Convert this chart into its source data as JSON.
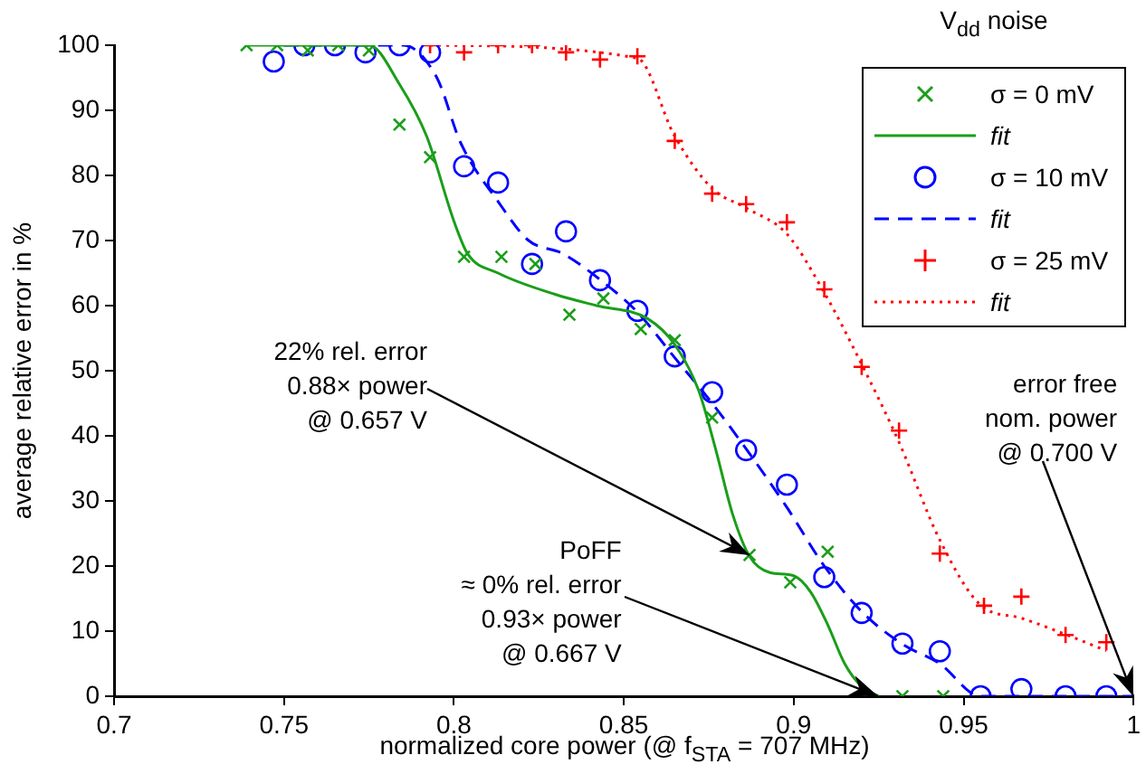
{
  "chart_data": {
    "type": "scatter",
    "xlabel": "normalized core power (@ f$_{STA}$ = 707 MHz)",
    "ylabel": "average relative error in %",
    "legend_title": "V$_{dd}$ noise",
    "legend": "top right",
    "grid": false,
    "xlim": [
      0.7,
      1
    ],
    "xticks": [
      0.7,
      0.75,
      0.8,
      0.85,
      0.9,
      0.95,
      1
    ],
    "ylim": [
      0,
      100
    ],
    "yticks": [
      0,
      10,
      20,
      30,
      40,
      50,
      60,
      70,
      80,
      90,
      100
    ],
    "series": [
      {
        "name": "σ = 0 mV",
        "type": "scatter",
        "marker": "cross",
        "color": "#1a9e1a",
        "x": [
          0.739,
          0.748,
          0.757,
          0.766,
          0.775,
          0.784,
          0.793,
          0.803,
          0.814,
          0.824,
          0.834,
          0.844,
          0.855,
          0.865,
          0.876,
          0.887,
          0.899,
          0.91,
          0.921,
          0.932,
          0.944
        ],
        "values": [
          100,
          100,
          99.2,
          100,
          99.2,
          87.8,
          82.8,
          67.5,
          67.5,
          66.4,
          58.6,
          61.1,
          56.4,
          54.7,
          42.8,
          21.7,
          17.5,
          22.2,
          0,
          0,
          0
        ]
      },
      {
        "name": "fit",
        "type": "line",
        "marker": "none",
        "line_style": "solid",
        "color": "#1a9e1a",
        "x": [
          0.739,
          0.775,
          0.784,
          0.792,
          0.8,
          0.804,
          0.813,
          0.83,
          0.842,
          0.857,
          0.865,
          0.872,
          0.877,
          0.882,
          0.887,
          0.893,
          0.9,
          0.905,
          0.91,
          0.915,
          0.92,
          0.925
        ],
        "values": [
          100,
          100,
          94,
          86,
          73,
          68,
          65,
          61.7,
          60,
          58,
          54,
          47,
          38,
          28,
          21.5,
          19,
          18.5,
          16,
          11,
          5,
          1.5,
          0
        ]
      },
      {
        "name": "σ = 10 mV",
        "type": "scatter",
        "marker": "circle",
        "color": "#0000ff",
        "x": [
          0.747,
          0.756,
          0.765,
          0.774,
          0.784,
          0.793,
          0.803,
          0.813,
          0.823,
          0.833,
          0.843,
          0.854,
          0.865,
          0.876,
          0.886,
          0.898,
          0.909,
          0.92,
          0.932,
          0.943,
          0.955,
          0.967,
          0.98,
          0.992
        ],
        "values": [
          97.5,
          100,
          100,
          98.9,
          100,
          98.9,
          81.4,
          78.9,
          66.4,
          71.4,
          63.9,
          59.2,
          52.2,
          46.7,
          37.8,
          32.5,
          18.3,
          12.8,
          8.1,
          6.9,
          0,
          1.1,
          0,
          0
        ]
      },
      {
        "name": "fit",
        "type": "line",
        "marker": "none",
        "line_style": "dashed",
        "color": "#0000ff",
        "x": [
          0.75,
          0.785,
          0.795,
          0.802,
          0.813,
          0.822,
          0.832,
          0.843,
          0.854,
          0.865,
          0.876,
          0.886,
          0.898,
          0.909,
          0.92,
          0.932,
          0.943,
          0.955,
          1
        ],
        "values": [
          100,
          100,
          95,
          85,
          76,
          70,
          68,
          64,
          59,
          52,
          45,
          38,
          29,
          20,
          13,
          8,
          5,
          0,
          0
        ]
      },
      {
        "name": "σ = 25 mV",
        "type": "scatter",
        "marker": "plus",
        "color": "#ff0000",
        "x": [
          0.793,
          0.803,
          0.813,
          0.823,
          0.833,
          0.843,
          0.854,
          0.865,
          0.876,
          0.886,
          0.898,
          0.909,
          0.92,
          0.931,
          0.943,
          0.956,
          0.967,
          0.98,
          0.992
        ],
        "values": [
          100,
          98.9,
          100,
          100,
          98.9,
          97.8,
          98.3,
          85.3,
          77.2,
          75.6,
          72.8,
          62.5,
          50.6,
          40.8,
          21.9,
          13.9,
          15.3,
          9.4,
          8.3
        ]
      },
      {
        "name": "fit",
        "type": "line",
        "marker": "none",
        "line_style": "dotted",
        "color": "#ff0000",
        "x": [
          0.793,
          0.854,
          0.865,
          0.876,
          0.886,
          0.898,
          0.909,
          0.92,
          0.931,
          0.943,
          0.955,
          0.967,
          0.98,
          0.992
        ],
        "values": [
          100,
          98,
          86,
          78,
          75,
          71,
          62,
          51,
          39,
          24,
          14,
          12,
          9.5,
          7
        ]
      }
    ],
    "annotations": [
      {
        "text": "22% rel. error\n0.88× power\n@ 0.657 V",
        "x": 0.887,
        "y": 21.7
      },
      {
        "text": "PoFF\n≈ 0% rel. error\n0.93× power\n@ 0.667 V",
        "x": 0.925,
        "y": 0
      },
      {
        "text": "error free\nnom. power\n@ 0.700 V",
        "x": 1,
        "y": 0
      }
    ]
  }
}
